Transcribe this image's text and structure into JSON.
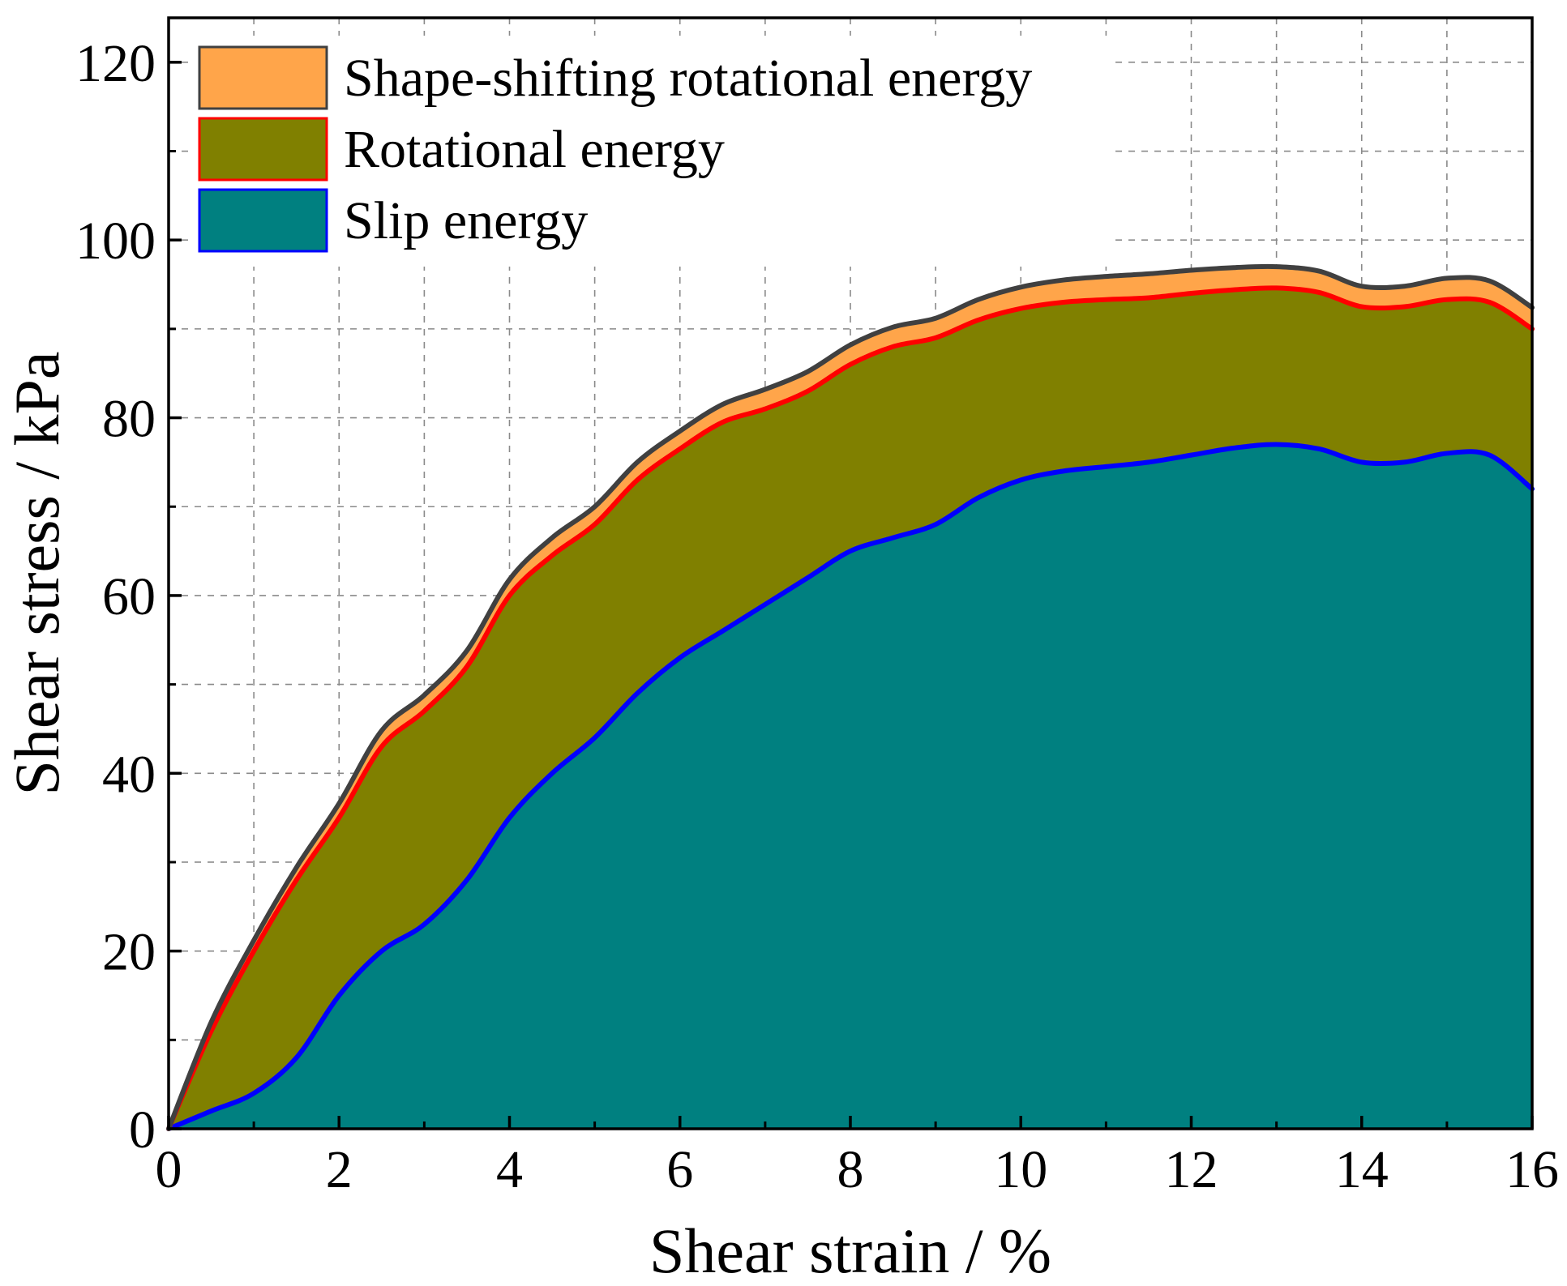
{
  "chart_data": {
    "type": "area",
    "stacked": true,
    "xlabel": "Shear strain / %",
    "ylabel": "Shear stress / kPa",
    "xlim": [
      0,
      16
    ],
    "ylim": [
      0,
      125
    ],
    "xticks": [
      "0",
      "2",
      "4",
      "6",
      "8",
      "10",
      "12",
      "14",
      "16"
    ],
    "yticks": [
      "0",
      "20",
      "40",
      "60",
      "80",
      "100",
      "120"
    ],
    "grid": true,
    "legend_position": "top-left",
    "x": [
      0,
      0.5,
      1,
      1.5,
      2,
      2.5,
      3,
      3.5,
      4,
      4.5,
      5,
      5.5,
      6,
      6.5,
      7,
      7.5,
      8,
      8.5,
      9,
      9.5,
      10,
      10.5,
      11,
      11.5,
      12,
      12.5,
      13,
      13.5,
      14,
      14.5,
      15,
      15.5,
      16
    ],
    "series": [
      {
        "name": "Slip energy",
        "fill": "#008080",
        "stroke": "#0000ff",
        "values": [
          0,
          2,
          4,
          8,
          15,
          20,
          23,
          28,
          35,
          40,
          44,
          49,
          53,
          56,
          59,
          62,
          65,
          66.5,
          68,
          71,
          73,
          74,
          74.5,
          75,
          75.8,
          76.6,
          77,
          76.5,
          75,
          75,
          76,
          75.8,
          72
        ]
      },
      {
        "name": "Rotational energy",
        "fill": "#808000",
        "stroke": "#ff0000",
        "values": [
          0,
          9,
          16,
          20,
          20,
          23,
          24,
          24,
          25,
          24.5,
          24,
          24,
          23.5,
          23.5,
          22,
          21,
          21,
          21.5,
          21,
          20,
          19.3,
          19,
          18.8,
          18.5,
          18.2,
          17.8,
          17.6,
          17.6,
          17.5,
          17.5,
          17.3,
          17.2,
          18
        ]
      },
      {
        "name": "Shape-shifting rotational energy",
        "fill": "#ffa54a",
        "stroke": "#404040",
        "values": [
          0,
          1.0,
          1.2,
          1.4,
          1.6,
          1.8,
          1.8,
          1.8,
          1.8,
          2.0,
          2.0,
          2.0,
          2.0,
          2.0,
          2.2,
          2.2,
          2.2,
          2.2,
          2.2,
          2.3,
          2.4,
          2.5,
          2.6,
          2.7,
          2.6,
          2.5,
          2.4,
          2.4,
          2.3,
          2.3,
          2.4,
          2.4,
          2.4
        ]
      }
    ],
    "legend": [
      {
        "label": "Shape-shifting rotational energy",
        "fill": "#ffa54a",
        "stroke": "#404040"
      },
      {
        "label": "Rotational energy",
        "fill": "#808000",
        "stroke": "#ff0000"
      },
      {
        "label": "Slip energy",
        "fill": "#008080",
        "stroke": "#0000ff"
      }
    ]
  }
}
